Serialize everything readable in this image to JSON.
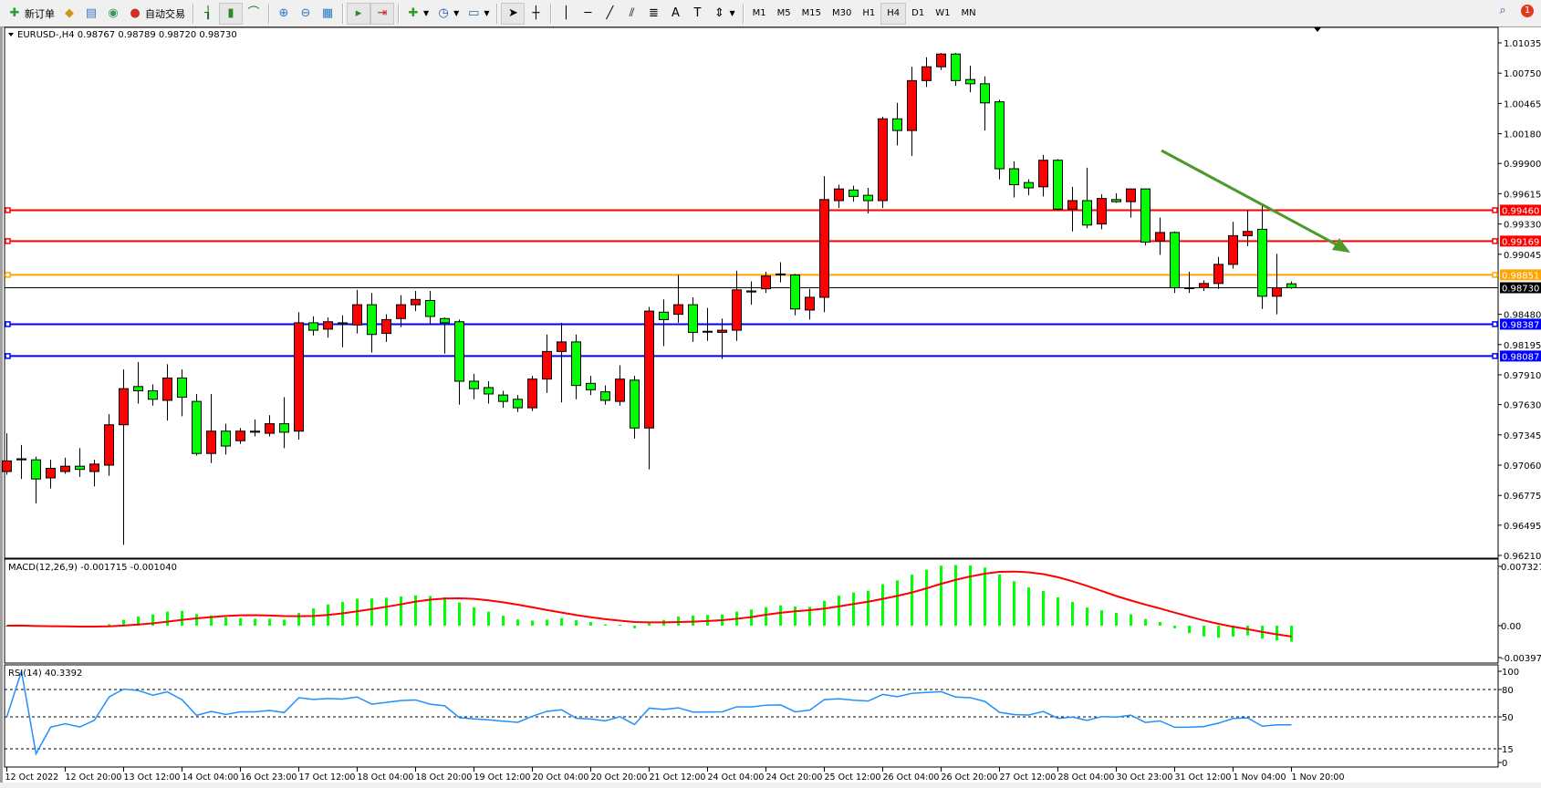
{
  "toolbar": {
    "new_order": "新订单",
    "auto_trading": "自动交易",
    "timeframes": [
      "M1",
      "M5",
      "M15",
      "M30",
      "H1",
      "H4",
      "D1",
      "W1",
      "MN"
    ],
    "active_timeframe": "H4",
    "notification_count": "1"
  },
  "chart": {
    "header": "EURUSD-,H4  0.98767 0.98789 0.98720 0.98730",
    "price_ticks": [
      "1.01035",
      "1.00750",
      "1.00465",
      "1.00180",
      "0.99900",
      "0.99615",
      "0.99330",
      "0.99045",
      "0.98480",
      "0.98195",
      "0.97910",
      "0.97630",
      "0.97345",
      "0.97060",
      "0.96775",
      "0.96495",
      "0.96210"
    ],
    "hlines": [
      {
        "price": 0.9946,
        "label": "0.99460",
        "color": "#ff0000"
      },
      {
        "price": 0.99169,
        "label": "0.99169",
        "color": "#ff0000"
      },
      {
        "price": 0.98851,
        "label": "0.98851",
        "color": "#ffa500"
      },
      {
        "price": 0.98387,
        "label": "0.98387",
        "color": "#0000ff"
      },
      {
        "price": 0.98087,
        "label": "0.98087",
        "color": "#0000ff"
      }
    ],
    "bid": {
      "price": 0.9873,
      "label": "0.98730",
      "color": "#000000"
    },
    "trendline_color": "#4c9a2a",
    "bull_color": "#ff0000",
    "bear_color": "#00ff00"
  },
  "macd": {
    "label": "MACD(12,26,9) -0.001715 -0.001040",
    "ticks": [
      "0.007327",
      "0.00",
      "-0.003978"
    ],
    "hist_color": "#00ff00",
    "signal_color": "#ff0000"
  },
  "rsi": {
    "label": "RSI(14) 40.3392",
    "ticks": [
      "100",
      "80",
      "50",
      "15",
      "0"
    ],
    "levels": [
      80,
      50,
      15
    ],
    "color": "#1e90ff"
  },
  "time_labels": [
    "12 Oct 2022",
    "12 Oct 20:00",
    "13 Oct 12:00",
    "14 Oct 04:00",
    "16 Oct 23:00",
    "17 Oct 12:00",
    "18 Oct 04:00",
    "18 Oct 20:00",
    "19 Oct 12:00",
    "20 Oct 04:00",
    "20 Oct 20:00",
    "21 Oct 12:00",
    "24 Oct 04:00",
    "24 Oct 20:00",
    "25 Oct 12:00",
    "26 Oct 04:00",
    "26 Oct 20:00",
    "27 Oct 12:00",
    "28 Oct 04:00",
    "30 Oct 23:00",
    "31 Oct 12:00",
    "1 Nov 04:00",
    "1 Nov 20:00"
  ],
  "chart_data": {
    "type": "candlestick",
    "symbol": "EURUSD-",
    "timeframe": "H4",
    "ylim": [
      0.9621,
      1.01035
    ],
    "ohlc": [
      [
        0.97,
        0.9736,
        0.9697,
        0.971
      ],
      [
        0.9711,
        0.9725,
        0.9693,
        0.9712
      ],
      [
        0.9711,
        0.9714,
        0.967,
        0.9693
      ],
      [
        0.9694,
        0.9711,
        0.9684,
        0.9703
      ],
      [
        0.97,
        0.9713,
        0.9698,
        0.9705
      ],
      [
        0.9705,
        0.9722,
        0.9695,
        0.9702
      ],
      [
        0.97,
        0.9711,
        0.9686,
        0.9707
      ],
      [
        0.9706,
        0.9754,
        0.9696,
        0.9744
      ],
      [
        0.9744,
        0.9796,
        0.9631,
        0.9778
      ],
      [
        0.978,
        0.9803,
        0.9764,
        0.9776
      ],
      [
        0.9776,
        0.9782,
        0.9762,
        0.9768
      ],
      [
        0.9767,
        0.9801,
        0.9748,
        0.9788
      ],
      [
        0.9788,
        0.9796,
        0.9752,
        0.977
      ],
      [
        0.9766,
        0.9773,
        0.9715,
        0.9717
      ],
      [
        0.9717,
        0.9773,
        0.9708,
        0.9738
      ],
      [
        0.9738,
        0.9745,
        0.9716,
        0.9724
      ],
      [
        0.9729,
        0.9741,
        0.9726,
        0.9738
      ],
      [
        0.9737,
        0.9749,
        0.9733,
        0.9738
      ],
      [
        0.9736,
        0.9753,
        0.9733,
        0.9745
      ],
      [
        0.9745,
        0.977,
        0.9722,
        0.9737
      ],
      [
        0.9738,
        0.985,
        0.973,
        0.984
      ],
      [
        0.984,
        0.9846,
        0.9828,
        0.9833
      ],
      [
        0.9834,
        0.9845,
        0.9826,
        0.9841
      ],
      [
        0.984,
        0.9847,
        0.9817,
        0.9839
      ],
      [
        0.9838,
        0.9871,
        0.983,
        0.9857
      ],
      [
        0.9857,
        0.9868,
        0.9812,
        0.9829
      ],
      [
        0.983,
        0.9848,
        0.9822,
        0.9843
      ],
      [
        0.9844,
        0.9866,
        0.9836,
        0.9857
      ],
      [
        0.9857,
        0.987,
        0.9851,
        0.9862
      ],
      [
        0.9861,
        0.987,
        0.9838,
        0.9846
      ],
      [
        0.9844,
        0.9845,
        0.9811,
        0.984
      ],
      [
        0.9841,
        0.9843,
        0.9763,
        0.9785
      ],
      [
        0.9785,
        0.9792,
        0.9768,
        0.9778
      ],
      [
        0.9779,
        0.9785,
        0.9764,
        0.9773
      ],
      [
        0.9772,
        0.9776,
        0.976,
        0.9766
      ],
      [
        0.9768,
        0.9772,
        0.9756,
        0.976
      ],
      [
        0.976,
        0.979,
        0.9757,
        0.9787
      ],
      [
        0.9787,
        0.9829,
        0.9774,
        0.9813
      ],
      [
        0.9813,
        0.984,
        0.9765,
        0.9822
      ],
      [
        0.9822,
        0.9829,
        0.9768,
        0.9781
      ],
      [
        0.9783,
        0.979,
        0.9772,
        0.9777
      ],
      [
        0.9775,
        0.9781,
        0.9763,
        0.9767
      ],
      [
        0.9766,
        0.98,
        0.9762,
        0.9787
      ],
      [
        0.9786,
        0.979,
        0.9731,
        0.9741
      ],
      [
        0.9741,
        0.9855,
        0.9702,
        0.9851
      ],
      [
        0.985,
        0.9862,
        0.9818,
        0.9843
      ],
      [
        0.9848,
        0.9885,
        0.984,
        0.9857
      ],
      [
        0.9857,
        0.9864,
        0.9822,
        0.9831
      ],
      [
        0.9832,
        0.9854,
        0.9823,
        0.9832
      ],
      [
        0.9831,
        0.9844,
        0.9806,
        0.9833
      ],
      [
        0.9833,
        0.9889,
        0.9823,
        0.9871
      ],
      [
        0.9869,
        0.9879,
        0.9857,
        0.987
      ],
      [
        0.9872,
        0.9888,
        0.9868,
        0.9884
      ],
      [
        0.9885,
        0.9897,
        0.9878,
        0.9886
      ],
      [
        0.9885,
        0.9886,
        0.9847,
        0.9853
      ],
      [
        0.9852,
        0.9872,
        0.9843,
        0.9864
      ],
      [
        0.9864,
        0.9978,
        0.985,
        0.9956
      ],
      [
        0.9955,
        0.997,
        0.9948,
        0.9966
      ],
      [
        0.9965,
        0.9969,
        0.9954,
        0.9959
      ],
      [
        0.996,
        0.9967,
        0.9943,
        0.9955
      ],
      [
        0.9955,
        1.0034,
        0.9948,
        1.0032
      ],
      [
        1.0032,
        1.0047,
        1.0007,
        1.0021
      ],
      [
        1.0021,
        1.0081,
        0.9997,
        1.0068
      ],
      [
        1.0068,
        1.009,
        1.0062,
        1.0081
      ],
      [
        1.0081,
        1.0094,
        1.0078,
        1.0093
      ],
      [
        1.0093,
        1.0094,
        1.0063,
        1.0068
      ],
      [
        1.0069,
        1.0082,
        1.0057,
        1.0065
      ],
      [
        1.0065,
        1.0072,
        1.0021,
        1.0047
      ],
      [
        1.0048,
        1.005,
        0.9975,
        0.9985
      ],
      [
        0.9985,
        0.9992,
        0.9958,
        0.997
      ],
      [
        0.9972,
        0.9975,
        0.996,
        0.9967
      ],
      [
        0.9968,
        0.9998,
        0.9959,
        0.9993
      ],
      [
        0.9993,
        0.9994,
        0.9946,
        0.9947
      ],
      [
        0.9947,
        0.9968,
        0.9926,
        0.9955
      ],
      [
        0.9955,
        0.9986,
        0.9929,
        0.9932
      ],
      [
        0.9933,
        0.9961,
        0.9928,
        0.9957
      ],
      [
        0.9956,
        0.9962,
        0.9953,
        0.9954
      ],
      [
        0.9954,
        0.9966,
        0.9939,
        0.9966
      ],
      [
        0.9966,
        0.9966,
        0.9913,
        0.9916
      ],
      [
        0.9917,
        0.9939,
        0.9904,
        0.9925
      ],
      [
        0.9925,
        0.9926,
        0.9868,
        0.9873
      ],
      [
        0.9873,
        0.9888,
        0.9868,
        0.9873
      ],
      [
        0.9873,
        0.988,
        0.987,
        0.9877
      ],
      [
        0.9877,
        0.9902,
        0.9872,
        0.9895
      ],
      [
        0.9895,
        0.9935,
        0.9891,
        0.9922
      ],
      [
        0.9922,
        0.9946,
        0.9912,
        0.9926
      ],
      [
        0.9928,
        0.995,
        0.9853,
        0.9865
      ],
      [
        0.9865,
        0.9905,
        0.9848,
        0.9873
      ],
      [
        0.98767,
        0.98789,
        0.9872,
        0.9873
      ]
    ],
    "macd_range": [
      -0.003978,
      0.007327
    ],
    "rsi_range": [
      0,
      100
    ]
  }
}
